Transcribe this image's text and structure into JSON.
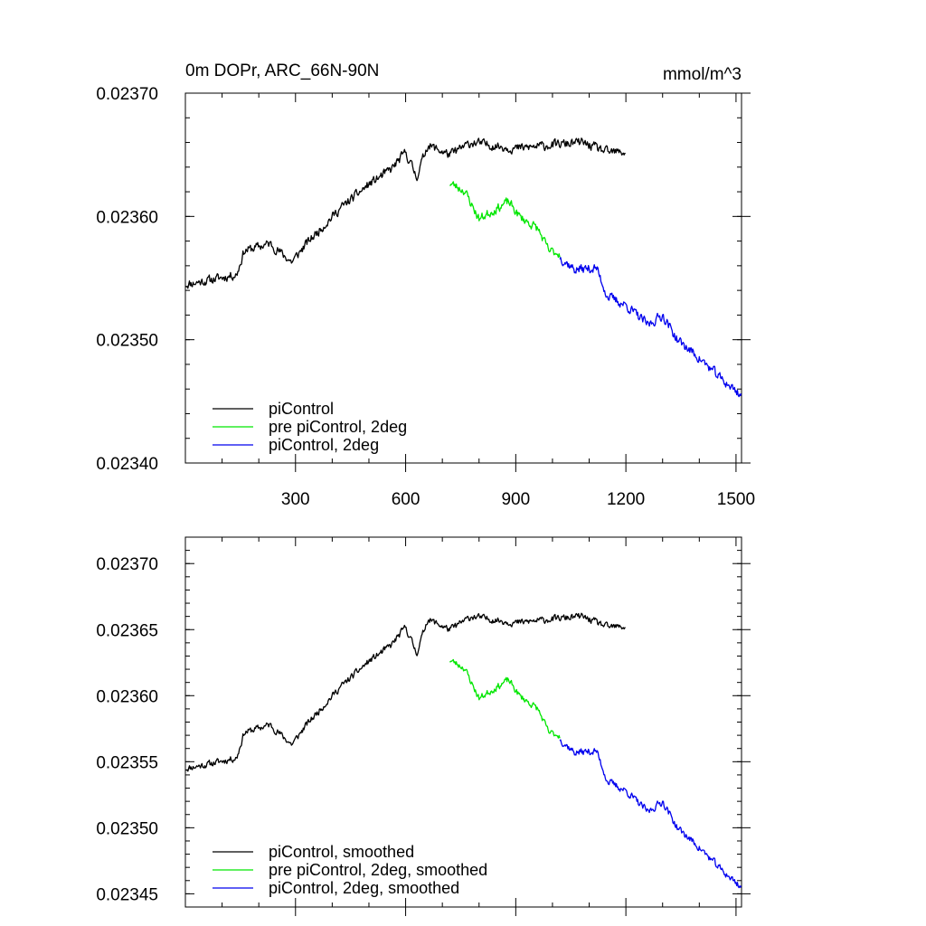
{
  "chart_data": [
    {
      "type": "line",
      "title": "0m DOPr, ARC_66N-90N",
      "units": "mmol/m^3",
      "xlim": [
        0,
        1515
      ],
      "ylim": [
        0.0234,
        0.0237
      ],
      "xticks": [
        300,
        600,
        900,
        1200,
        1500
      ],
      "xtick_labels": [
        "300",
        "600",
        "900",
        "1200",
        "1500"
      ],
      "yticks": [
        0.0234,
        0.0235,
        0.0236,
        0.0237
      ],
      "ytick_labels": [
        "0.02340",
        "0.02350",
        "0.02360",
        "0.02370"
      ],
      "legend_position": "bottom-left",
      "series": [
        {
          "name": "piControl",
          "color": "#000000",
          "seed": 11,
          "noise": 3.2e-06,
          "anchors": [
            [
              1,
              0.023545
            ],
            [
              60,
              0.023548
            ],
            [
              140,
              0.023553
            ],
            [
              160,
              0.023572
            ],
            [
              230,
              0.023578
            ],
            [
              290,
              0.023563
            ],
            [
              330,
              0.023578
            ],
            [
              420,
              0.023606
            ],
            [
              500,
              0.023626
            ],
            [
              560,
              0.023638
            ],
            [
              600,
              0.023652
            ],
            [
              630,
              0.023632
            ],
            [
              660,
              0.023658
            ],
            [
              720,
              0.02365
            ],
            [
              780,
              0.02366
            ],
            [
              900,
              0.023655
            ],
            [
              1000,
              0.023658
            ],
            [
              1080,
              0.02366
            ],
            [
              1150,
              0.023652
            ],
            [
              1200,
              0.023652
            ]
          ]
        },
        {
          "name": "pre piControl, 2deg",
          "color": "#00e600",
          "seed": 23,
          "noise": 3.2e-06,
          "anchors": [
            [
              720,
              0.023627
            ],
            [
              760,
              0.023621
            ],
            [
              800,
              0.023598
            ],
            [
              840,
              0.023605
            ],
            [
              880,
              0.023612
            ],
            [
              910,
              0.0236
            ],
            [
              960,
              0.02359
            ],
            [
              990,
              0.023572
            ],
            [
              1020,
              0.02357
            ]
          ]
        },
        {
          "name": "piControl, 2deg",
          "color": "#0000ee",
          "seed": 37,
          "noise": 3.4e-06,
          "anchors": [
            [
              1020,
              0.023567
            ],
            [
              1060,
              0.023557
            ],
            [
              1120,
              0.023558
            ],
            [
              1150,
              0.023535
            ],
            [
              1200,
              0.023528
            ],
            [
              1260,
              0.023512
            ],
            [
              1300,
              0.02352
            ],
            [
              1340,
              0.0235
            ],
            [
              1400,
              0.023485
            ],
            [
              1460,
              0.023468
            ],
            [
              1515,
              0.023455
            ]
          ]
        }
      ]
    },
    {
      "type": "line",
      "title": "",
      "xlim": [
        0,
        1515
      ],
      "ylim": [
        0.02344,
        0.02372
      ],
      "xticks": [
        300,
        600,
        900,
        1200,
        1500
      ],
      "xtick_labels": [],
      "yticks": [
        0.02345,
        0.0235,
        0.02355,
        0.0236,
        0.02365,
        0.0237
      ],
      "ytick_labels": [
        "0.02345",
        "0.02350",
        "0.02355",
        "0.02360",
        "0.02365",
        "0.02370"
      ],
      "legend_position": "bottom-left",
      "series": [
        {
          "name": "piControl, smoothed",
          "color": "#000000",
          "seed": 11,
          "noise": 2.2e-06,
          "anchors": [
            [
              1,
              0.023545
            ],
            [
              60,
              0.023548
            ],
            [
              140,
              0.023553
            ],
            [
              160,
              0.023572
            ],
            [
              230,
              0.023578
            ],
            [
              290,
              0.023563
            ],
            [
              330,
              0.023578
            ],
            [
              420,
              0.023606
            ],
            [
              500,
              0.023626
            ],
            [
              560,
              0.023638
            ],
            [
              600,
              0.023652
            ],
            [
              630,
              0.023632
            ],
            [
              660,
              0.023658
            ],
            [
              720,
              0.02365
            ],
            [
              780,
              0.02366
            ],
            [
              900,
              0.023655
            ],
            [
              1000,
              0.023658
            ],
            [
              1080,
              0.02366
            ],
            [
              1150,
              0.023652
            ],
            [
              1200,
              0.023652
            ]
          ]
        },
        {
          "name": "pre piControl, 2deg, smoothed",
          "color": "#00e600",
          "seed": 23,
          "noise": 2.2e-06,
          "anchors": [
            [
              720,
              0.023627
            ],
            [
              760,
              0.023621
            ],
            [
              800,
              0.023598
            ],
            [
              840,
              0.023605
            ],
            [
              880,
              0.023612
            ],
            [
              910,
              0.0236
            ],
            [
              960,
              0.02359
            ],
            [
              990,
              0.023572
            ],
            [
              1020,
              0.02357
            ]
          ]
        },
        {
          "name": "piControl, 2deg, smoothed",
          "color": "#0000ee",
          "seed": 37,
          "noise": 2.4e-06,
          "anchors": [
            [
              1020,
              0.023567
            ],
            [
              1060,
              0.023557
            ],
            [
              1120,
              0.023558
            ],
            [
              1150,
              0.023535
            ],
            [
              1200,
              0.023528
            ],
            [
              1260,
              0.023512
            ],
            [
              1300,
              0.02352
            ],
            [
              1340,
              0.0235
            ],
            [
              1400,
              0.023485
            ],
            [
              1460,
              0.023468
            ],
            [
              1515,
              0.023455
            ]
          ]
        }
      ]
    }
  ]
}
